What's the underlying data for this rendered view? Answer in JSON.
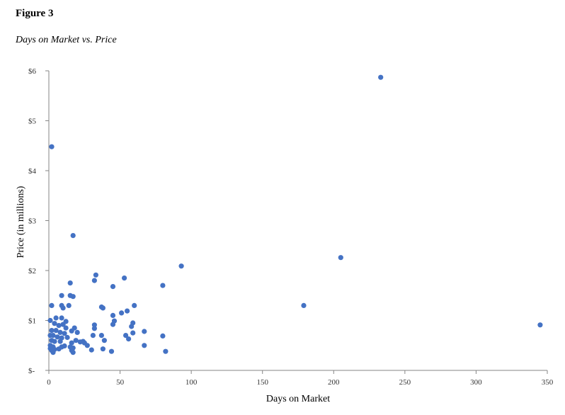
{
  "figure_label": "Figure 3",
  "chart_data": {
    "type": "scatter",
    "title": "Days on Market vs. Price",
    "xlabel": "Days on Market",
    "ylabel": "Price (in millions)",
    "xlim": [
      0,
      350
    ],
    "ylim": [
      0,
      6
    ],
    "x_ticks": [
      0,
      50,
      100,
      150,
      200,
      250,
      300,
      350
    ],
    "x_tick_labels": [
      "0",
      "50",
      "100",
      "150",
      "200",
      "250",
      "300",
      "350"
    ],
    "y_ticks": [
      0,
      1,
      2,
      3,
      4,
      5,
      6
    ],
    "y_tick_labels": [
      "$-",
      "$1",
      "$2",
      "$3",
      "$4",
      "$5",
      "$6"
    ],
    "grid": false,
    "legend": false,
    "marker_color": "#4472C4",
    "series": [
      {
        "points": [
          [
            2,
            4.48
          ],
          [
            233,
            5.87
          ],
          [
            17,
            2.7
          ],
          [
            205,
            2.26
          ],
          [
            93,
            2.09
          ],
          [
            33,
            1.91
          ],
          [
            32,
            1.8
          ],
          [
            15,
            1.75
          ],
          [
            53,
            1.85
          ],
          [
            80,
            1.7
          ],
          [
            45,
            1.68
          ],
          [
            9,
            1.5
          ],
          [
            15,
            1.5
          ],
          [
            17,
            1.48
          ],
          [
            2,
            1.3
          ],
          [
            9,
            1.3
          ],
          [
            14,
            1.3
          ],
          [
            10,
            1.25
          ],
          [
            37,
            1.27
          ],
          [
            38,
            1.25
          ],
          [
            60,
            1.3
          ],
          [
            55,
            1.19
          ],
          [
            51,
            1.15
          ],
          [
            179,
            1.3
          ],
          [
            345,
            0.91
          ],
          [
            5,
            1.05
          ],
          [
            9,
            1.05
          ],
          [
            12,
            0.98
          ],
          [
            1,
            1.0
          ],
          [
            45,
            1.1
          ],
          [
            46,
            0.99
          ],
          [
            59,
            0.95
          ],
          [
            45,
            0.92
          ],
          [
            58,
            0.88
          ],
          [
            32,
            0.91
          ],
          [
            32,
            0.84
          ],
          [
            4,
            0.94
          ],
          [
            7,
            0.9
          ],
          [
            10,
            0.92
          ],
          [
            12,
            0.85
          ],
          [
            18,
            0.85
          ],
          [
            16,
            0.79
          ],
          [
            20,
            0.76
          ],
          [
            2,
            0.8
          ],
          [
            5,
            0.8
          ],
          [
            8,
            0.76
          ],
          [
            11,
            0.74
          ],
          [
            1,
            0.7
          ],
          [
            3,
            0.7
          ],
          [
            6,
            0.67
          ],
          [
            9,
            0.65
          ],
          [
            13,
            0.66
          ],
          [
            19,
            0.6
          ],
          [
            31,
            0.7
          ],
          [
            37,
            0.7
          ],
          [
            54,
            0.7
          ],
          [
            56,
            0.63
          ],
          [
            59,
            0.75
          ],
          [
            67,
            0.78
          ],
          [
            80,
            0.69
          ],
          [
            2,
            0.6
          ],
          [
            4,
            0.58
          ],
          [
            8,
            0.58
          ],
          [
            22,
            0.57
          ],
          [
            25,
            0.55
          ],
          [
            16,
            0.55
          ],
          [
            39,
            0.6
          ],
          [
            1,
            0.5
          ],
          [
            3,
            0.47
          ],
          [
            9,
            0.47
          ],
          [
            11,
            0.49
          ],
          [
            15,
            0.47
          ],
          [
            17,
            0.45
          ],
          [
            27,
            0.5
          ],
          [
            1,
            0.44
          ],
          [
            2,
            0.4
          ],
          [
            4,
            0.42
          ],
          [
            7,
            0.43
          ],
          [
            16,
            0.4
          ],
          [
            30,
            0.41
          ],
          [
            38,
            0.43
          ],
          [
            44,
            0.38
          ],
          [
            3,
            0.36
          ],
          [
            17,
            0.36
          ],
          [
            67,
            0.5
          ],
          [
            82,
            0.38
          ],
          [
            24,
            0.58
          ]
        ]
      }
    ]
  }
}
